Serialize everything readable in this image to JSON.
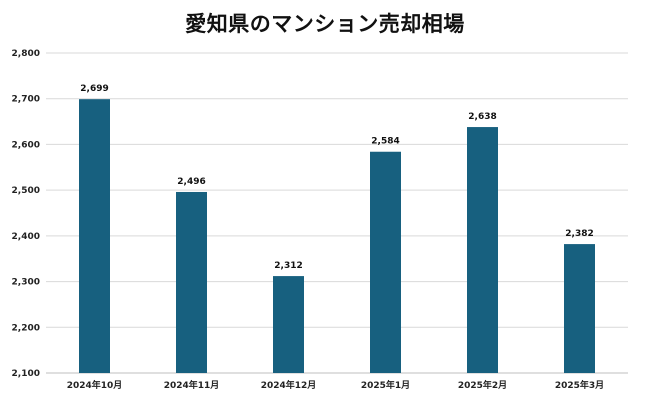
{
  "chart_data": {
    "type": "bar",
    "title": "愛知県のマンション売却相場",
    "categories": [
      "2024年10月",
      "2024年11月",
      "2024年12月",
      "2025年1月",
      "2025年2月",
      "2025年3月"
    ],
    "values": [
      2699,
      2496,
      2312,
      2584,
      2638,
      2382
    ],
    "data_labels": [
      "2,699",
      "2,496",
      "2,312",
      "2,584",
      "2,638",
      "2,382"
    ],
    "ylim": [
      2100,
      2800
    ],
    "yticks": [
      2100,
      2200,
      2300,
      2400,
      2500,
      2600,
      2700,
      2800
    ],
    "ytick_labels": [
      "2,100",
      "2,200",
      "2,300",
      "2,400",
      "2,500",
      "2,600",
      "2,700",
      "2,800"
    ],
    "grid": true,
    "bar_color": "#17607f",
    "grid_color": "#d9d9d9",
    "xlabel": "",
    "ylabel": ""
  }
}
